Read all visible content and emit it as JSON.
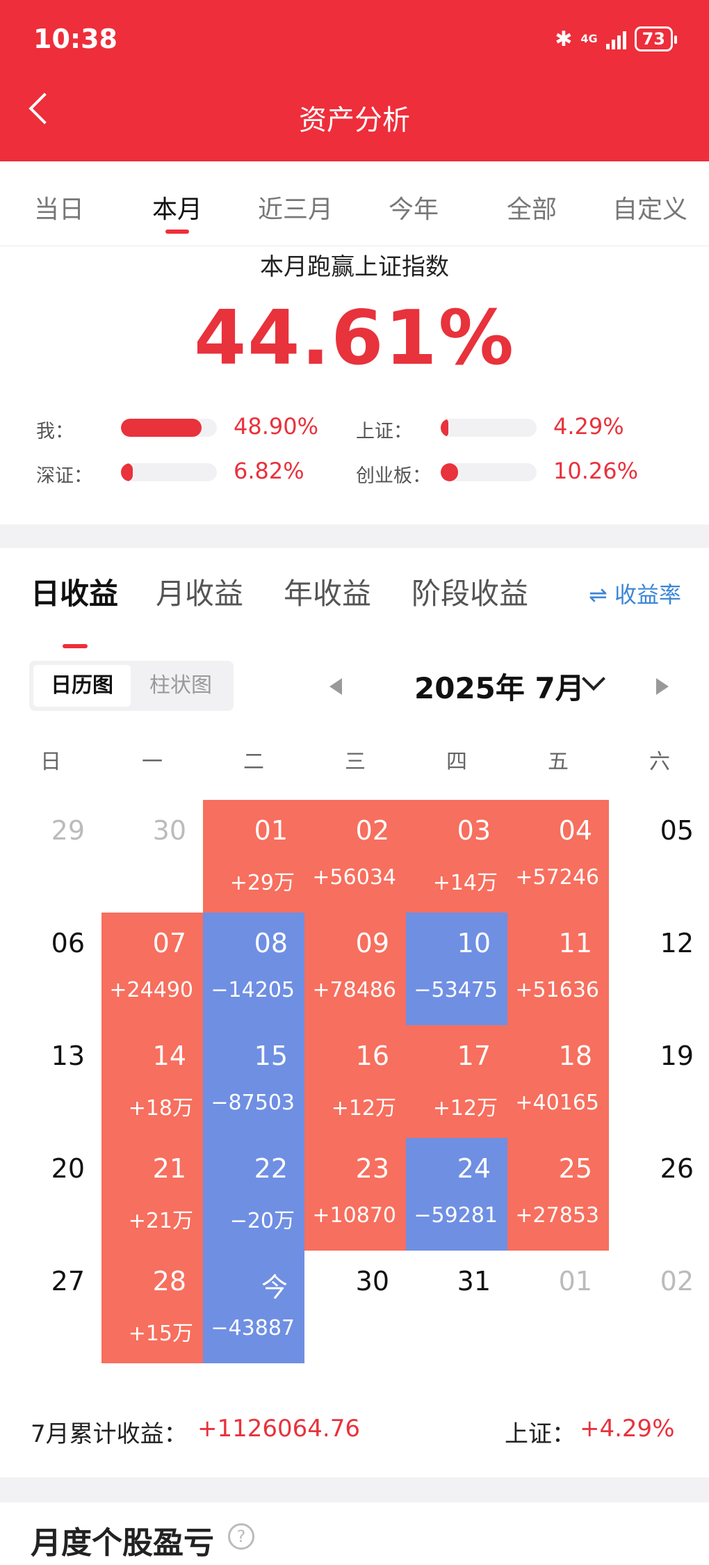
{
  "status": {
    "time": "10:38",
    "network": "4G",
    "battery": "73"
  },
  "nav": {
    "title": "资产分析"
  },
  "tabs": [
    "当日",
    "本月",
    "近三月",
    "今年",
    "全部",
    "自定义"
  ],
  "summary": {
    "title": "本月跑赢上证指数",
    "big_value": "44.61%",
    "compare": [
      {
        "label": "我：",
        "value": "48.90%",
        "fill": 0.84
      },
      {
        "label": "上证：",
        "value": "4.29%",
        "fill": 0.08
      },
      {
        "label": "深证：",
        "value": "6.82%",
        "fill": 0.12
      },
      {
        "label": "创业板：",
        "value": "10.26%",
        "fill": 0.18
      }
    ]
  },
  "profit_tabs": {
    "items": [
      "日收益",
      "月收益",
      "年收益",
      "阶段收益"
    ],
    "rate_label": "⇌ 收益率"
  },
  "view_toggle": {
    "calendar": "日历图",
    "bar": "柱状图"
  },
  "month": {
    "label": "2025年 7月"
  },
  "weekdays": [
    "日",
    "一",
    "二",
    "三",
    "四",
    "五",
    "六"
  ],
  "calendar": [
    [
      {
        "d": "29",
        "dim": true
      },
      {
        "d": "30",
        "dim": true
      },
      {
        "d": "01",
        "v": "+29万",
        "s": "pos"
      },
      {
        "d": "02",
        "v": "+56034",
        "s": "pos"
      },
      {
        "d": "03",
        "v": "+14万",
        "s": "pos"
      },
      {
        "d": "04",
        "v": "+57246",
        "s": "pos"
      },
      {
        "d": "05"
      }
    ],
    [
      {
        "d": "06"
      },
      {
        "d": "07",
        "v": "+24490",
        "s": "pos"
      },
      {
        "d": "08",
        "v": "−14205",
        "s": "neg"
      },
      {
        "d": "09",
        "v": "+78486",
        "s": "pos"
      },
      {
        "d": "10",
        "v": "−53475",
        "s": "neg"
      },
      {
        "d": "11",
        "v": "+51636",
        "s": "pos"
      },
      {
        "d": "12"
      }
    ],
    [
      {
        "d": "13"
      },
      {
        "d": "14",
        "v": "+18万",
        "s": "pos"
      },
      {
        "d": "15",
        "v": "−87503",
        "s": "neg"
      },
      {
        "d": "16",
        "v": "+12万",
        "s": "pos"
      },
      {
        "d": "17",
        "v": "+12万",
        "s": "pos"
      },
      {
        "d": "18",
        "v": "+40165",
        "s": "pos"
      },
      {
        "d": "19"
      }
    ],
    [
      {
        "d": "20"
      },
      {
        "d": "21",
        "v": "+21万",
        "s": "pos"
      },
      {
        "d": "22",
        "v": "−20万",
        "s": "neg"
      },
      {
        "d": "23",
        "v": "+10870",
        "s": "pos"
      },
      {
        "d": "24",
        "v": "−59281",
        "s": "neg"
      },
      {
        "d": "25",
        "v": "+27853",
        "s": "pos"
      },
      {
        "d": "26"
      }
    ],
    [
      {
        "d": "27"
      },
      {
        "d": "28",
        "v": "+15万",
        "s": "pos"
      },
      {
        "d": "今",
        "v": "−43887",
        "s": "neg"
      },
      {
        "d": "30"
      },
      {
        "d": "31"
      },
      {
        "d": "01",
        "dim": true
      },
      {
        "d": "02",
        "dim": true
      }
    ]
  ],
  "totals": {
    "label": "7月累计收益：",
    "value": "+1126064.76",
    "index_label": "上证：",
    "index_value": "+4.29%"
  },
  "monthly": {
    "title": "月度个股盈亏",
    "help": "?"
  },
  "colors": {
    "brand": "#ee2e3a",
    "gain": "#f76f5e",
    "loss": "#6f8fe3",
    "link": "#3b86d6"
  }
}
